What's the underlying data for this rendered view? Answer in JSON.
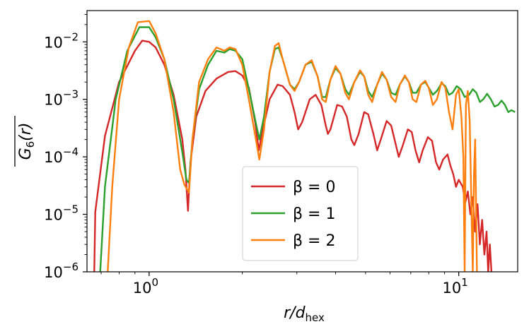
{
  "chart_data": {
    "type": "line",
    "xscale": "log",
    "yscale": "log",
    "xlim": [
      0.63,
      15.5
    ],
    "ylim": [
      1e-06,
      0.035
    ],
    "xlabel": {
      "main": "r/d",
      "sub": "hex"
    },
    "ylabel": {
      "main": "G",
      "sub": "6",
      "tail": "(r)",
      "overline": true
    },
    "x_ticks": [
      {
        "value": 1,
        "base": "10",
        "exp": "0"
      },
      {
        "value": 10,
        "base": "10",
        "exp": "1"
      }
    ],
    "y_ticks": [
      {
        "value": 1e-06,
        "base": "10",
        "exp": "−6"
      },
      {
        "value": 1e-05,
        "base": "10",
        "exp": "−5"
      },
      {
        "value": 0.0001,
        "base": "10",
        "exp": "−4"
      },
      {
        "value": 0.001,
        "base": "10",
        "exp": "−3"
      },
      {
        "value": 0.01,
        "base": "10",
        "exp": "−2"
      }
    ],
    "legend_position": "lower-center",
    "series": [
      {
        "name": "β = 0",
        "color": "#d62728",
        "points": [
          [
            0.665,
            1e-06
          ],
          [
            0.67,
            1.1e-05
          ],
          [
            0.72,
            0.00023
          ],
          [
            0.8,
            0.002
          ],
          [
            0.9,
            0.007
          ],
          [
            0.95,
            0.0105
          ],
          [
            1.0,
            0.01
          ],
          [
            1.05,
            0.008
          ],
          [
            1.12,
            0.004
          ],
          [
            1.2,
            0.0012
          ],
          [
            1.28,
            0.0002
          ],
          [
            1.31,
            6e-05
          ],
          [
            1.335,
            1.15e-05
          ],
          [
            1.36,
            8e-05
          ],
          [
            1.42,
            0.0005
          ],
          [
            1.52,
            0.0014
          ],
          [
            1.65,
            0.0023
          ],
          [
            1.8,
            0.003
          ],
          [
            1.9,
            0.0031
          ],
          [
            2.0,
            0.0026
          ],
          [
            2.1,
            0.0016
          ],
          [
            2.2,
            0.0004
          ],
          [
            2.26,
            0.00013
          ],
          [
            2.33,
            0.0003
          ],
          [
            2.45,
            0.001
          ],
          [
            2.6,
            0.0018
          ],
          [
            2.7,
            0.0017
          ],
          [
            2.85,
            0.0012
          ],
          [
            2.95,
            0.0006
          ],
          [
            3.03,
            0.0003
          ],
          [
            3.12,
            0.0004
          ],
          [
            3.3,
            0.001
          ],
          [
            3.45,
            0.0012
          ],
          [
            3.6,
            0.0008
          ],
          [
            3.72,
            0.00035
          ],
          [
            3.78,
            0.00025
          ],
          [
            3.85,
            0.0003
          ],
          [
            4.05,
            0.0008
          ],
          [
            4.2,
            0.00075
          ],
          [
            4.35,
            0.0005
          ],
          [
            4.5,
            0.0002
          ],
          [
            4.6,
            0.00016
          ],
          [
            4.75,
            0.00025
          ],
          [
            4.95,
            0.0006
          ],
          [
            5.1,
            0.00055
          ],
          [
            5.3,
            0.00025
          ],
          [
            5.45,
            0.00013
          ],
          [
            5.6,
            0.0002
          ],
          [
            5.85,
            0.00042
          ],
          [
            6.05,
            0.00035
          ],
          [
            6.25,
            0.00017
          ],
          [
            6.4,
            0.0001
          ],
          [
            6.6,
            0.00016
          ],
          [
            6.85,
            0.0003
          ],
          [
            7.05,
            0.00027
          ],
          [
            7.25,
            0.00013
          ],
          [
            7.45,
            8e-05
          ],
          [
            7.65,
            0.00013
          ],
          [
            7.95,
            0.00022
          ],
          [
            8.2,
            0.00019
          ],
          [
            8.45,
            8e-05
          ],
          [
            8.65,
            6e-05
          ],
          [
            8.9,
            9e-05
          ],
          [
            9.2,
            0.00011
          ],
          [
            9.4,
            7e-05
          ],
          [
            9.6,
            5e-05
          ],
          [
            9.8,
            3e-05
          ],
          [
            10.0,
            4e-05
          ],
          [
            10.3,
            3e-05
          ],
          [
            10.5,
            1.6e-05
          ],
          [
            10.7,
            2.5e-05
          ],
          [
            10.9,
            1e-05
          ],
          [
            11.1,
            2e-05
          ],
          [
            11.3,
            5e-06
          ],
          [
            11.5,
            1.5e-05
          ],
          [
            11.7,
            3e-06
          ],
          [
            11.9,
            8e-06
          ],
          [
            12.1,
            2e-06
          ],
          [
            12.3,
            5e-06
          ],
          [
            12.45,
            1e-06
          ],
          [
            12.6,
            3e-06
          ],
          [
            12.75,
            1e-06
          ]
        ]
      },
      {
        "name": "β = 1",
        "color": "#2ca02c",
        "points": [
          [
            0.695,
            1e-06
          ],
          [
            0.72,
            3e-05
          ],
          [
            0.78,
            0.001
          ],
          [
            0.85,
            0.007
          ],
          [
            0.93,
            0.018
          ],
          [
            1.0,
            0.018
          ],
          [
            1.05,
            0.012
          ],
          [
            1.12,
            0.005
          ],
          [
            1.2,
            0.001
          ],
          [
            1.28,
            0.00012
          ],
          [
            1.32,
            4e-05
          ],
          [
            1.345,
            3.5e-05
          ],
          [
            1.38,
            0.0002
          ],
          [
            1.45,
            0.0015
          ],
          [
            1.55,
            0.004
          ],
          [
            1.65,
            0.007
          ],
          [
            1.75,
            0.0065
          ],
          [
            1.82,
            0.0075
          ],
          [
            1.9,
            0.007
          ],
          [
            2.0,
            0.005
          ],
          [
            2.1,
            0.0015
          ],
          [
            2.22,
            0.00035
          ],
          [
            2.27,
            0.0002
          ],
          [
            2.35,
            0.0005
          ],
          [
            2.45,
            0.003
          ],
          [
            2.55,
            0.0075
          ],
          [
            2.62,
            0.008
          ],
          [
            2.7,
            0.005
          ],
          [
            2.85,
            0.0018
          ],
          [
            2.95,
            0.0015
          ],
          [
            3.05,
            0.002
          ],
          [
            3.2,
            0.004
          ],
          [
            3.35,
            0.0045
          ],
          [
            3.5,
            0.0025
          ],
          [
            3.62,
            0.0011
          ],
          [
            3.72,
            0.0011
          ],
          [
            3.85,
            0.0022
          ],
          [
            4.0,
            0.0035
          ],
          [
            4.15,
            0.0028
          ],
          [
            4.3,
            0.0015
          ],
          [
            4.42,
            0.0012
          ],
          [
            4.6,
            0.002
          ],
          [
            4.8,
            0.003
          ],
          [
            4.95,
            0.0025
          ],
          [
            5.1,
            0.0014
          ],
          [
            5.25,
            0.0011
          ],
          [
            5.45,
            0.0018
          ],
          [
            5.65,
            0.0028
          ],
          [
            5.85,
            0.0022
          ],
          [
            6.05,
            0.0013
          ],
          [
            6.25,
            0.0012
          ],
          [
            6.45,
            0.0018
          ],
          [
            6.7,
            0.0025
          ],
          [
            6.9,
            0.002
          ],
          [
            7.1,
            0.0013
          ],
          [
            7.3,
            0.0013
          ],
          [
            7.55,
            0.0018
          ],
          [
            7.8,
            0.002
          ],
          [
            8.0,
            0.0016
          ],
          [
            8.25,
            0.0012
          ],
          [
            8.5,
            0.0014
          ],
          [
            8.8,
            0.0019
          ],
          [
            9.05,
            0.0017
          ],
          [
            9.3,
            0.0012
          ],
          [
            9.55,
            0.0013
          ],
          [
            9.85,
            0.0017
          ],
          [
            10.15,
            0.0015
          ],
          [
            10.45,
            0.0011
          ],
          [
            10.8,
            0.0012
          ],
          [
            11.1,
            0.0015
          ],
          [
            11.4,
            0.0013
          ],
          [
            11.7,
            0.0009
          ],
          [
            12.0,
            0.001
          ],
          [
            12.35,
            0.00125
          ],
          [
            12.7,
            0.001
          ],
          [
            13.05,
            0.00075
          ],
          [
            13.4,
            0.0008
          ],
          [
            13.75,
            0.00095
          ],
          [
            14.1,
            0.0008
          ],
          [
            14.45,
            0.0006
          ],
          [
            14.8,
            0.00065
          ],
          [
            15.2,
            0.0006
          ]
        ]
      },
      {
        "name": "β = 2",
        "color": "#ff7f0e",
        "points": [
          [
            0.735,
            1e-06
          ],
          [
            0.76,
            3e-05
          ],
          [
            0.8,
            0.001
          ],
          [
            0.86,
            0.008
          ],
          [
            0.92,
            0.022
          ],
          [
            1.0,
            0.023
          ],
          [
            1.05,
            0.014
          ],
          [
            1.12,
            0.005
          ],
          [
            1.2,
            0.0006
          ],
          [
            1.26,
            6e-05
          ],
          [
            1.3,
            3.3e-05
          ],
          [
            1.345,
            2.4e-05
          ],
          [
            1.38,
            0.0002
          ],
          [
            1.45,
            0.002
          ],
          [
            1.55,
            0.005
          ],
          [
            1.65,
            0.008
          ],
          [
            1.75,
            0.007
          ],
          [
            1.82,
            0.008
          ],
          [
            1.9,
            0.0075
          ],
          [
            2.0,
            0.004
          ],
          [
            2.1,
            0.001
          ],
          [
            2.22,
            0.00018
          ],
          [
            2.27,
            9e-05
          ],
          [
            2.35,
            0.0003
          ],
          [
            2.45,
            0.003
          ],
          [
            2.55,
            0.0085
          ],
          [
            2.62,
            0.0095
          ],
          [
            2.7,
            0.005
          ],
          [
            2.85,
            0.0018
          ],
          [
            2.95,
            0.0014
          ],
          [
            3.05,
            0.002
          ],
          [
            3.2,
            0.004
          ],
          [
            3.35,
            0.0048
          ],
          [
            3.5,
            0.0025
          ],
          [
            3.62,
            0.001
          ],
          [
            3.72,
            0.0009
          ],
          [
            3.85,
            0.0022
          ],
          [
            4.0,
            0.0038
          ],
          [
            4.15,
            0.0028
          ],
          [
            4.3,
            0.0013
          ],
          [
            4.42,
            0.001
          ],
          [
            4.6,
            0.002
          ],
          [
            4.8,
            0.0032
          ],
          [
            4.95,
            0.0025
          ],
          [
            5.1,
            0.0012
          ],
          [
            5.25,
            0.0009
          ],
          [
            5.45,
            0.0018
          ],
          [
            5.65,
            0.003
          ],
          [
            5.85,
            0.0022
          ],
          [
            6.05,
            0.0011
          ],
          [
            6.25,
            0.0009
          ],
          [
            6.45,
            0.0018
          ],
          [
            6.7,
            0.0026
          ],
          [
            6.9,
            0.002
          ],
          [
            7.1,
            0.001
          ],
          [
            7.3,
            0.0009
          ],
          [
            7.55,
            0.0018
          ],
          [
            7.8,
            0.0021
          ],
          [
            8.0,
            0.0016
          ],
          [
            8.25,
            0.0008
          ],
          [
            8.5,
            0.001
          ],
          [
            8.8,
            0.002
          ],
          [
            9.05,
            0.0016
          ],
          [
            9.3,
            0.0006
          ],
          [
            9.55,
            0.0003
          ],
          [
            9.8,
            0.0012
          ],
          [
            10.0,
            0.0015
          ],
          [
            10.2,
            0.0005
          ],
          [
            10.35,
            0.0001
          ],
          [
            10.45,
            1e-06
          ],
          [
            10.55,
            0.0008
          ],
          [
            10.7,
            0.0014
          ],
          [
            10.85,
            0.0004
          ],
          [
            11.0,
            1e-05
          ],
          [
            11.1,
            1e-06
          ],
          [
            11.2,
            5e-05
          ],
          [
            11.3,
            0.0002
          ],
          [
            11.45,
            1e-06
          ]
        ]
      }
    ]
  }
}
